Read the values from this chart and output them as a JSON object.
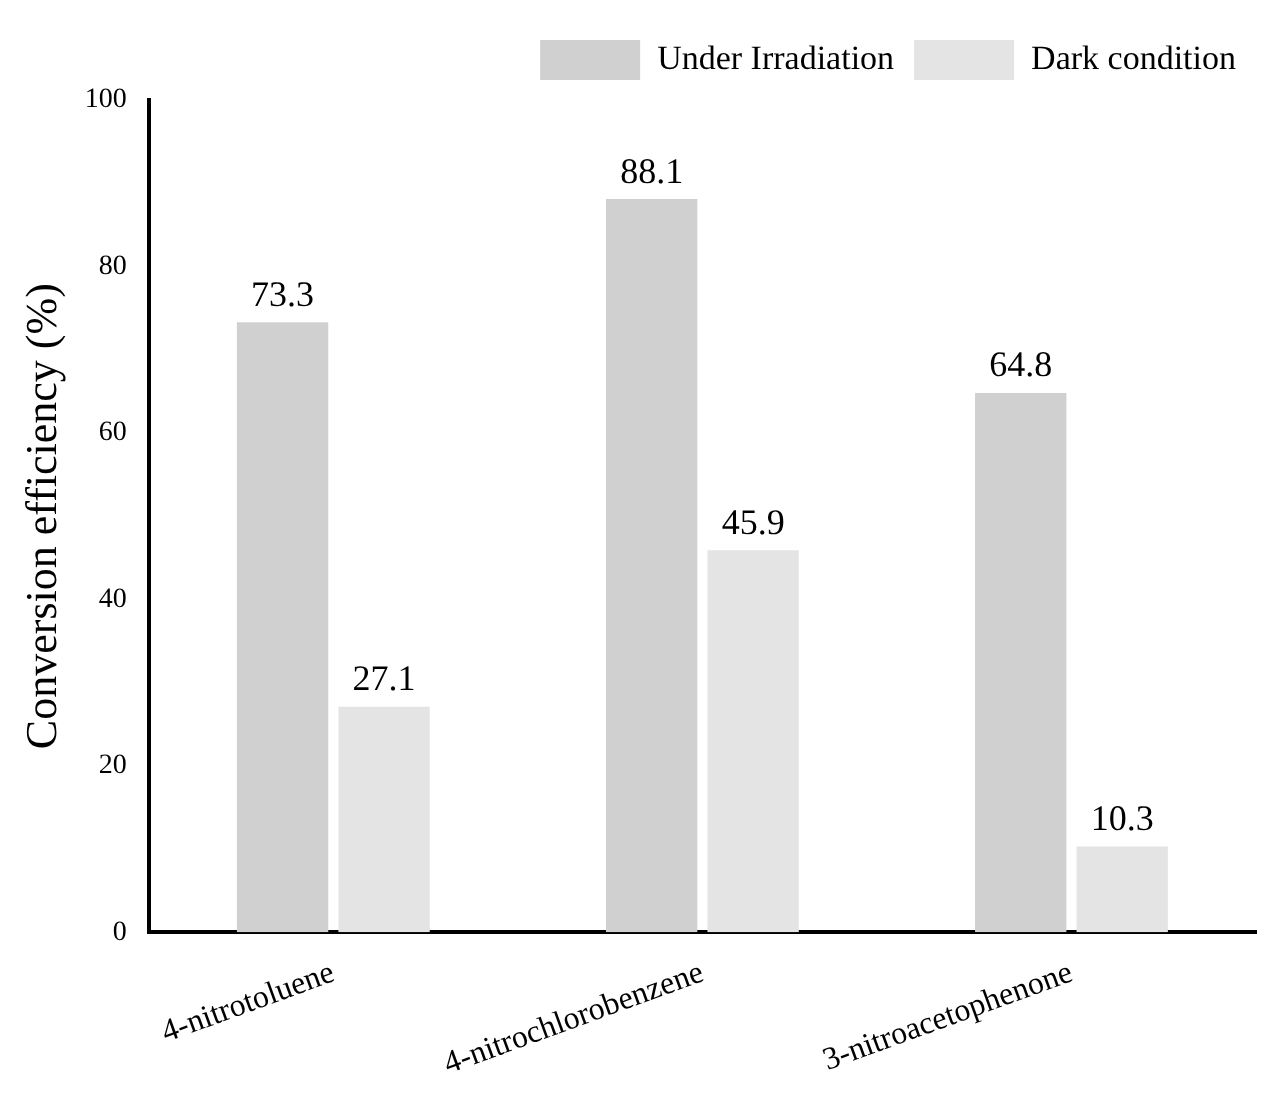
{
  "chart_data": {
    "type": "bar",
    "ylabel": "Conversion efficiency (%)",
    "categories": [
      "4-nitrotoluene",
      "4-nitrochlorobenzene",
      "3-nitroacetophenone"
    ],
    "series": [
      {
        "name": "Under Irradiation",
        "color": "#d0d0d0",
        "values": [
          73.3,
          88.1,
          64.8
        ]
      },
      {
        "name": "Dark condition",
        "color": "#e4e4e4",
        "values": [
          27.1,
          45.9,
          10.3
        ]
      }
    ],
    "ylim": [
      0,
      100
    ],
    "yticks": [
      0,
      20,
      40,
      60,
      80,
      100
    ],
    "grid": false,
    "legend": "top right",
    "data_labels": true
  }
}
